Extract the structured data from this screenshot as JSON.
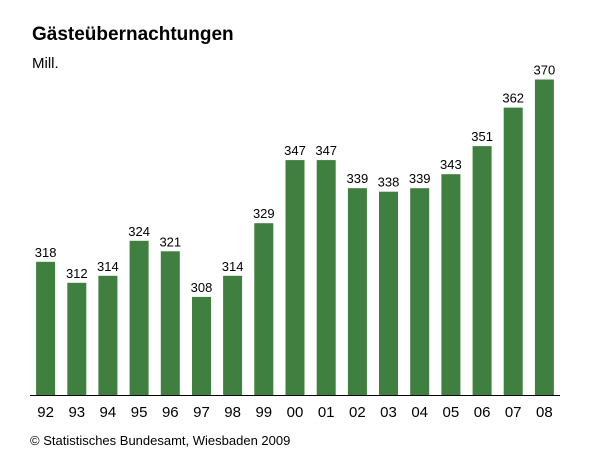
{
  "chart_data": {
    "type": "bar",
    "title": "Gästeübernachtungen",
    "ylabel": "Mill.",
    "xlabel": "",
    "categories": [
      "92",
      "93",
      "94",
      "95",
      "96",
      "97",
      "98",
      "99",
      "00",
      "01",
      "02",
      "03",
      "04",
      "05",
      "06",
      "07",
      "08"
    ],
    "values": [
      318,
      312,
      314,
      324,
      321,
      308,
      314,
      329,
      347,
      347,
      339,
      338,
      339,
      343,
      351,
      362,
      370
    ],
    "bar_color": "#3f7f3f",
    "ylim": [
      280,
      375
    ],
    "grid": false,
    "legend": "none",
    "data_labels": true
  },
  "footer": {
    "source": "© Statistisches Bundesamt, Wiesbaden 2009"
  }
}
